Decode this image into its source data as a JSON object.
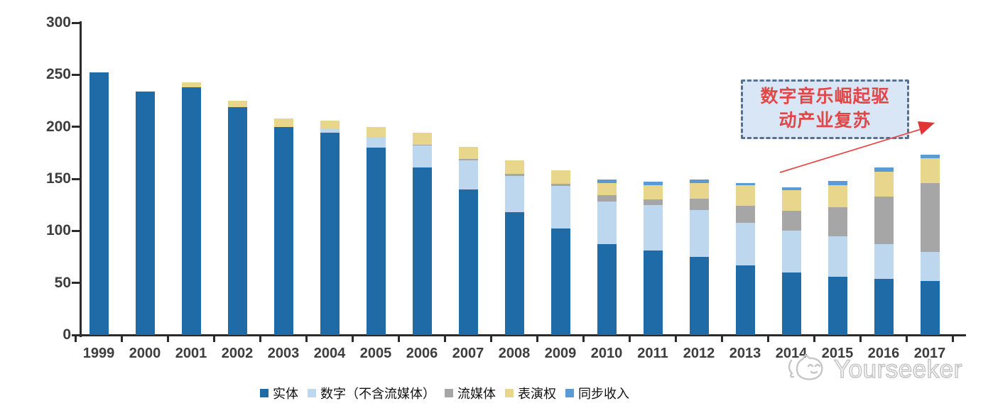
{
  "chart_data": {
    "type": "bar",
    "stacked": true,
    "title": "",
    "xlabel": "",
    "ylabel": "",
    "ylim": [
      0,
      300
    ],
    "yticks": [
      0,
      50,
      100,
      150,
      200,
      250,
      300
    ],
    "grid": false,
    "legend_position": "bottom",
    "categories": [
      "1999",
      "2000",
      "2001",
      "2002",
      "2003",
      "2004",
      "2005",
      "2006",
      "2007",
      "2008",
      "2009",
      "2010",
      "2011",
      "2012",
      "2013",
      "2014",
      "2015",
      "2016",
      "2017"
    ],
    "series": [
      {
        "name": "实体",
        "color": "#1f6ba8",
        "values": [
          252,
          234,
          238,
          219,
          200,
          194,
          180,
          161,
          140,
          118,
          102,
          87,
          81,
          75,
          67,
          60,
          56,
          54,
          52
        ]
      },
      {
        "name": "数字（不含流媒体）",
        "color": "#bdd7ee",
        "values": [
          0,
          0,
          0,
          0,
          0,
          4,
          10,
          21,
          28,
          35,
          41,
          41,
          44,
          45,
          41,
          40,
          39,
          33,
          28
        ]
      },
      {
        "name": "流媒体",
        "color": "#a6a6a6",
        "values": [
          0,
          0,
          0,
          0,
          0,
          0,
          0,
          1,
          1,
          2,
          2,
          6,
          5,
          11,
          16,
          19,
          28,
          46,
          66
        ]
      },
      {
        "name": "表演权",
        "color": "#e8d68d",
        "values": [
          0,
          0,
          5,
          6,
          8,
          8,
          10,
          11,
          12,
          13,
          13,
          12,
          14,
          15,
          20,
          20,
          21,
          24,
          24
        ]
      },
      {
        "name": "同步收入",
        "color": "#5b9bd5",
        "values": [
          0,
          0,
          0,
          0,
          0,
          0,
          0,
          0,
          0,
          0,
          0,
          3,
          3,
          3,
          2,
          3,
          4,
          4,
          3
        ]
      }
    ],
    "colors": {
      "axis": "#2b2b2b",
      "annotation_border": "#56718d",
      "annotation_fill": "#d9e6f5",
      "annotation_text": "#e14747",
      "arrow": "#e84848",
      "watermark": "#c6c6c6"
    }
  },
  "annotation": {
    "line1": "数字音乐崛起驱",
    "line2": "动产业复苏"
  },
  "watermark": {
    "text": "Yourseeker"
  }
}
